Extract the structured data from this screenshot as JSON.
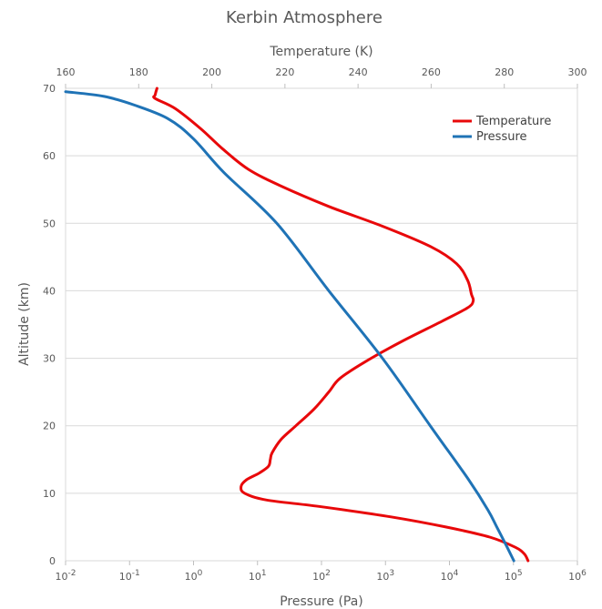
{
  "chart_data": {
    "type": "line",
    "title": "Kerbin Atmosphere",
    "y_axis": {
      "label": "Altitude (km)",
      "range": [
        0,
        70
      ],
      "ticks": [
        0,
        10,
        20,
        30,
        40,
        50,
        60,
        70
      ]
    },
    "x_top_axis": {
      "label": "Temperature (K)",
      "range": [
        160,
        300
      ],
      "ticks": [
        160,
        180,
        200,
        220,
        240,
        260,
        280,
        300
      ]
    },
    "x_bottom_axis": {
      "label": "Pressure (Pa)",
      "scale": "log",
      "range": [
        0.01,
        1000000
      ],
      "ticks": [
        {
          "base": "10",
          "exp": "-2"
        },
        {
          "base": "10",
          "exp": "-1"
        },
        {
          "base": "10",
          "exp": "0"
        },
        {
          "base": "10",
          "exp": "1"
        },
        {
          "base": "10",
          "exp": "2"
        },
        {
          "base": "10",
          "exp": "3"
        },
        {
          "base": "10",
          "exp": "4"
        },
        {
          "base": "10",
          "exp": "5"
        },
        {
          "base": "10",
          "exp": "6"
        }
      ]
    },
    "grid": true,
    "legend": "top-right",
    "series": [
      {
        "name": "Temperature",
        "axis": "top",
        "color": "#e8080a",
        "points": [
          [
            286.5,
            0
          ],
          [
            285.5,
            1
          ],
          [
            283,
            2
          ],
          [
            276,
            3.5
          ],
          [
            264,
            5
          ],
          [
            249,
            6.5
          ],
          [
            230,
            8
          ],
          [
            215,
            9
          ],
          [
            209,
            10
          ],
          [
            208,
            11
          ],
          [
            209.5,
            12
          ],
          [
            213,
            13
          ],
          [
            215.5,
            14
          ],
          [
            216,
            15
          ],
          [
            216.5,
            16
          ],
          [
            219,
            18
          ],
          [
            223,
            20
          ],
          [
            228,
            22.5
          ],
          [
            232,
            25
          ],
          [
            235,
            27
          ],
          [
            242,
            29.5
          ],
          [
            252,
            32.5
          ],
          [
            263,
            35.5
          ],
          [
            270,
            37.5
          ],
          [
            271.5,
            38.5
          ],
          [
            271,
            39.5
          ],
          [
            270,
            41.5
          ],
          [
            267,
            44
          ],
          [
            260,
            46.5
          ],
          [
            247,
            49.5
          ],
          [
            232,
            52.5
          ],
          [
            219,
            55.5
          ],
          [
            210,
            58
          ],
          [
            203,
            61
          ],
          [
            197,
            64
          ],
          [
            190,
            67
          ],
          [
            184.5,
            68.5
          ],
          [
            184.5,
            69
          ],
          [
            185,
            70
          ]
        ]
      },
      {
        "name": "Pressure",
        "axis": "bottom",
        "color": "#1f73b6",
        "points": [
          [
            101325,
            0
          ],
          [
            80000,
            2
          ],
          [
            55000,
            5
          ],
          [
            40000,
            7.5
          ],
          [
            20000,
            12
          ],
          [
            5000,
            20
          ],
          [
            900,
            30
          ],
          [
            130,
            40
          ],
          [
            20,
            50
          ],
          [
            3,
            57.5
          ],
          [
            1,
            62.5
          ],
          [
            0.4,
            65.5
          ],
          [
            0.12,
            67.5
          ],
          [
            0.04,
            68.8
          ],
          [
            0.01,
            69.5
          ]
        ]
      }
    ]
  }
}
